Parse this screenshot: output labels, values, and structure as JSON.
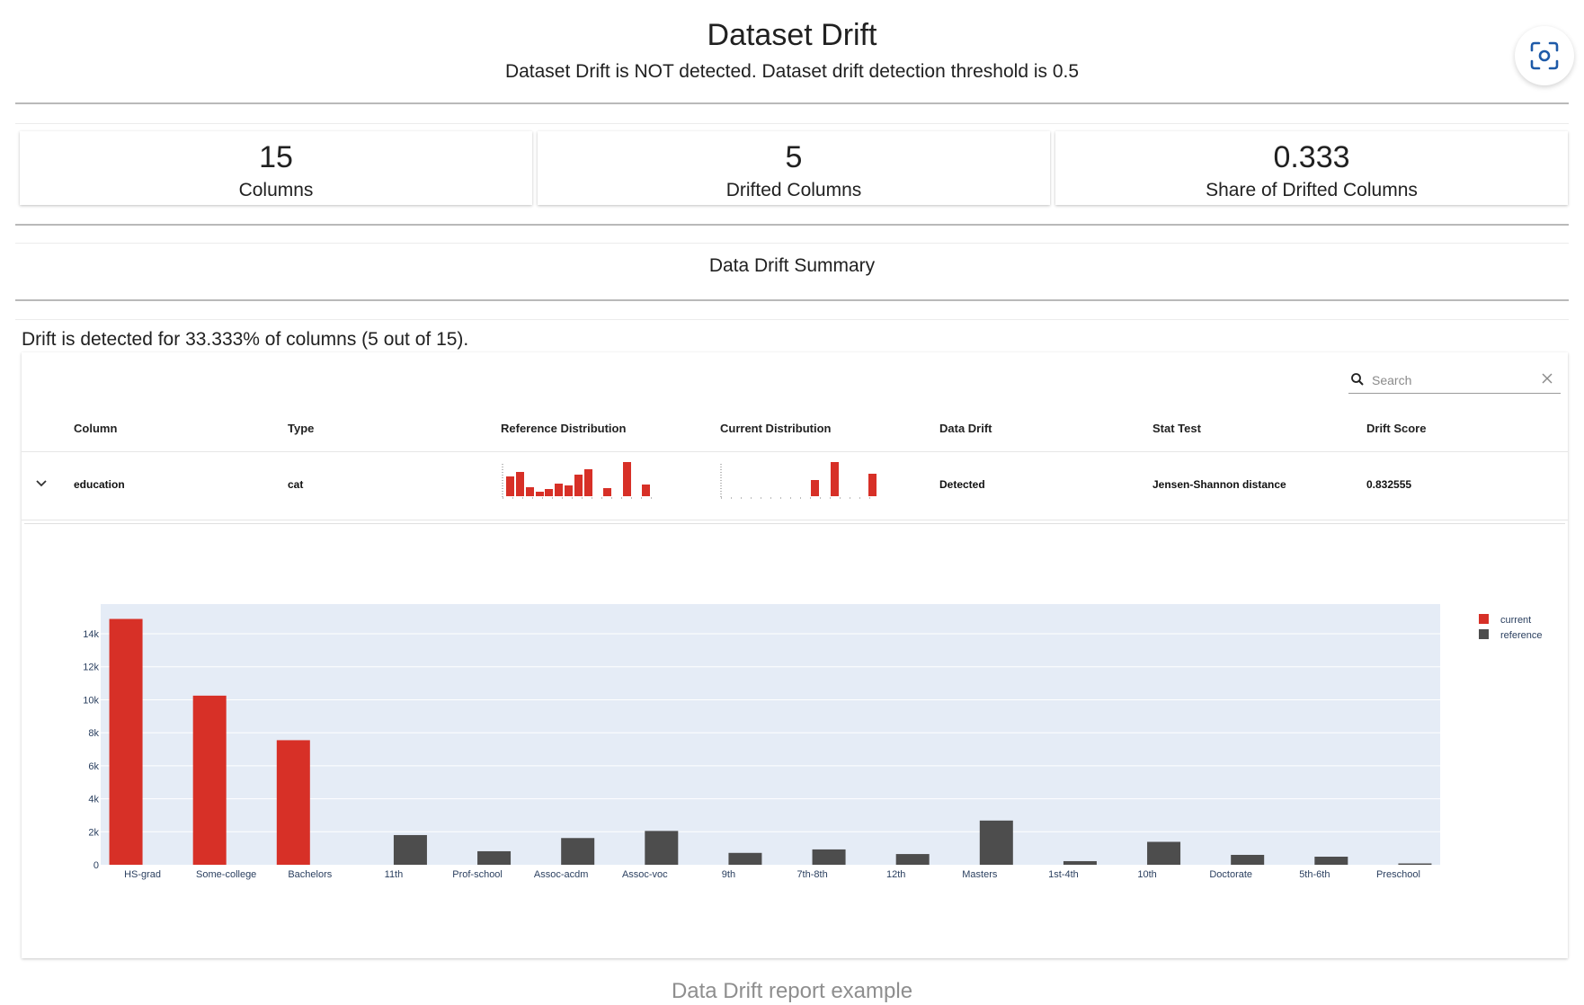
{
  "header": {
    "title": "Dataset Drift",
    "subtitle": "Dataset Drift is NOT detected. Dataset drift detection threshold is 0.5"
  },
  "screenshot_button_icon": "screenshot-icon",
  "cards": [
    {
      "value": "15",
      "label": "Columns"
    },
    {
      "value": "5",
      "label": "Drifted Columns"
    },
    {
      "value": "0.333",
      "label": "Share of Drifted Columns"
    }
  ],
  "summary_title": "Data Drift Summary",
  "drift_text": "Drift is detected for 33.333% of columns (5 out of 15).",
  "search": {
    "placeholder": "Search"
  },
  "table": {
    "headers": [
      "Column",
      "Type",
      "Reference Distribution",
      "Current Distribution",
      "Data Drift",
      "Stat Test",
      "Drift Score"
    ],
    "rows": [
      {
        "column": "education",
        "type": "cat",
        "data_drift": "Detected",
        "stat_test": "Jensen-Shannon distance",
        "drift_score": "0.832555"
      }
    ]
  },
  "colors": {
    "current": "#d73027",
    "reference": "#4d4d4d",
    "plot_bg": "#e5ecf6"
  },
  "chart_data": {
    "type": "bar",
    "categories": [
      "HS-grad",
      "Some-college",
      "Bachelors",
      "11th",
      "Prof-school",
      "Assoc-acdm",
      "Assoc-voc",
      "9th",
      "7th-8th",
      "12th",
      "Masters",
      "1st-4th",
      "10th",
      "Doctorate",
      "5th-6th",
      "Preschool"
    ],
    "series": [
      {
        "name": "current",
        "values": [
          14900,
          10250,
          7550,
          0,
          0,
          0,
          0,
          0,
          0,
          0,
          0,
          0,
          0,
          0,
          0,
          0
        ]
      },
      {
        "name": "reference",
        "values": [
          0,
          0,
          0,
          1800,
          820,
          1620,
          2050,
          720,
          930,
          650,
          2680,
          220,
          1390,
          600,
          490,
          80
        ]
      }
    ],
    "yticks": [
      "0",
      "2k",
      "4k",
      "6k",
      "8k",
      "10k",
      "12k",
      "14k"
    ],
    "ylim": [
      0,
      15800
    ],
    "legend": "top-right",
    "grid": true
  }
}
